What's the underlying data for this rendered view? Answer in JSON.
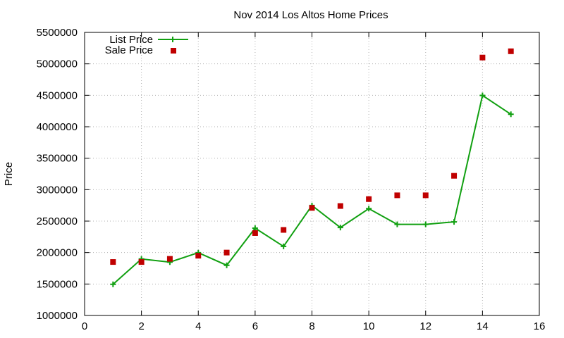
{
  "chart_data": {
    "type": "line",
    "title": "Nov 2014 Los Altos Home Prices",
    "xlabel": "",
    "ylabel": "Price",
    "xlim": [
      0,
      16
    ],
    "ylim": [
      1000000,
      5500000
    ],
    "x_ticks": [
      0,
      2,
      4,
      6,
      8,
      10,
      12,
      14,
      16
    ],
    "y_ticks": [
      1000000,
      1500000,
      2000000,
      2500000,
      3000000,
      3500000,
      4000000,
      4500000,
      5000000,
      5500000
    ],
    "grid": true,
    "legend_position": "top-left",
    "series": [
      {
        "name": "List Price",
        "style": "line-with-plus-markers",
        "color": "#11a011",
        "x": [
          1,
          2,
          3,
          4,
          5,
          6,
          7,
          8,
          9,
          10,
          11,
          12,
          13,
          14,
          15
        ],
        "values": [
          1495000,
          1898000,
          1848000,
          1998000,
          1798000,
          2388000,
          2098000,
          2748000,
          2398000,
          2698000,
          2448000,
          2448000,
          2488000,
          4498000,
          4198000
        ]
      },
      {
        "name": "Sale Price",
        "style": "square-markers",
        "color": "#c00000",
        "x": [
          1,
          2,
          3,
          4,
          5,
          6,
          7,
          8,
          9,
          10,
          11,
          12,
          13,
          14,
          15
        ],
        "values": [
          1850000,
          1850000,
          1900000,
          1950000,
          2000000,
          2310000,
          2360000,
          2710000,
          2740000,
          2850000,
          2910000,
          2910000,
          3220000,
          5100000,
          5200000
        ]
      }
    ]
  }
}
